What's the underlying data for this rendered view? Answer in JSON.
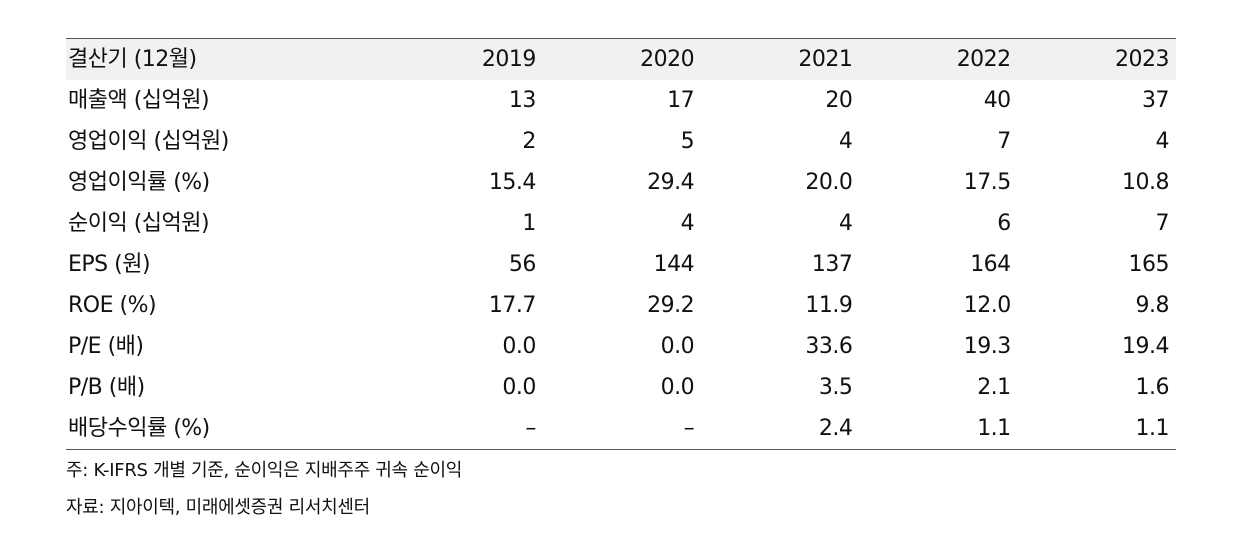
{
  "table": {
    "header": [
      "결산기 (12월)",
      "2019",
      "2020",
      "2021",
      "2022",
      "2023"
    ],
    "rows": [
      [
        "매출액 (십억원)",
        "13",
        "17",
        "20",
        "40",
        "37"
      ],
      [
        "영업이익 (십억원)",
        "2",
        "5",
        "4",
        "7",
        "4"
      ],
      [
        "영업이익률 (%)",
        "15.4",
        "29.4",
        "20.0",
        "17.5",
        "10.8"
      ],
      [
        "순이익 (십억원)",
        "1",
        "4",
        "4",
        "6",
        "7"
      ],
      [
        "EPS (원)",
        "56",
        "144",
        "137",
        "164",
        "165"
      ],
      [
        "ROE (%)",
        "17.7",
        "29.2",
        "11.9",
        "12.0",
        "9.8"
      ],
      [
        "P/E (배)",
        "0.0",
        "0.0",
        "33.6",
        "19.3",
        "19.4"
      ],
      [
        "P/B (배)",
        "0.0",
        "0.0",
        "3.5",
        "2.1",
        "1.6"
      ],
      [
        "배당수익률 (%)",
        "–",
        "–",
        "2.4",
        "1.1",
        "1.1"
      ]
    ]
  },
  "notes": {
    "note": "주: K-IFRS 개별 기준, 순이익은 지배주주 귀속 순이익",
    "source": "자료: 지아이텍, 미래에셋증권 리서치센터"
  },
  "colors": {
    "header_bg": "#f1f1f1",
    "rule": "#555555",
    "text": "#111111"
  }
}
